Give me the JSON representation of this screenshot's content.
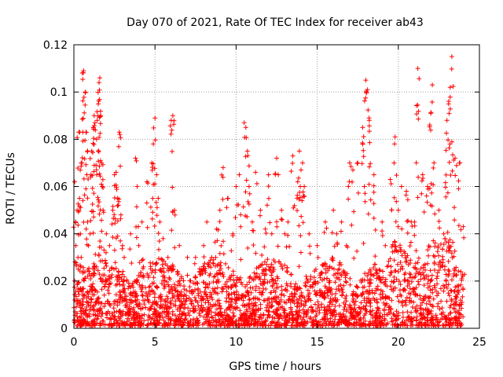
{
  "chart_data": {
    "type": "scatter",
    "title": "Day 070 of 2021, Rate Of TEC Index for receiver ab43",
    "xlabel": "GPS time / hours",
    "ylabel": "ROTI / TECUs",
    "xlim": [
      0,
      25
    ],
    "ylim": [
      0,
      0.12
    ],
    "xticks": [
      "0",
      "5",
      "10",
      "15",
      "20",
      "25"
    ],
    "yticks": [
      "0",
      "0.02",
      "0.04",
      "0.06",
      "0.08",
      "0.1",
      "0.12"
    ],
    "grid": true,
    "marker": "plus",
    "color": "#ff0000",
    "series": [
      {
        "x": [
          0.05,
          0.1,
          0.12,
          0.2,
          0.25,
          0.3,
          0.35,
          0.4,
          0.45,
          0.5,
          0.55,
          0.6,
          0.7,
          0.75,
          0.8,
          0.85,
          0.9,
          1.0,
          1.05,
          1.1,
          1.2,
          1.25,
          1.3,
          1.4,
          1.5,
          1.55,
          1.6,
          1.65,
          1.7,
          1.75,
          1.8,
          2.0,
          2.2,
          2.4,
          2.5,
          2.6,
          2.7,
          2.8,
          2.9,
          3.0,
          3.1,
          3.5,
          3.8,
          3.9,
          4.0,
          4.2,
          4.5,
          4.8,
          4.9,
          5.0,
          5.1,
          5.2,
          5.3,
          5.5,
          5.8,
          6.0,
          6.1,
          6.2,
          6.5,
          7.0,
          7.5,
          8.0,
          8.2,
          8.5,
          8.8,
          9.0,
          9.2,
          9.5,
          9.8,
          10.0,
          10.2,
          10.5,
          10.6,
          10.7,
          10.8,
          11.0,
          11.2,
          11.5,
          11.8,
          12.0,
          12.2,
          12.5,
          12.6,
          12.8,
          13.0,
          13.2,
          13.5,
          13.8,
          13.9,
          14.0,
          14.1,
          14.2,
          14.5,
          15.0,
          15.5,
          16.0,
          16.2,
          16.5,
          16.8,
          17.0,
          17.2,
          17.5,
          17.8,
          17.9,
          18.0,
          18.1,
          18.2,
          18.5,
          19.0,
          19.2,
          19.5,
          19.8,
          20.0,
          20.2,
          20.5,
          20.8,
          21.0,
          21.2,
          21.5,
          21.8,
          22.0,
          22.1,
          22.2,
          22.5,
          22.8,
          23.0,
          23.1,
          23.2,
          23.3,
          23.5,
          23.8,
          24.0
        ],
        "y": [
          0.062,
          0.045,
          0.035,
          0.05,
          0.03,
          0.083,
          0.055,
          0.04,
          0.03,
          0.07,
          0.083,
          0.109,
          0.1,
          0.083,
          0.065,
          0.045,
          0.035,
          0.04,
          0.065,
          0.075,
          0.085,
          0.09,
          0.087,
          0.08,
          0.095,
          0.104,
          0.106,
          0.09,
          0.07,
          0.06,
          0.05,
          0.04,
          0.035,
          0.05,
          0.065,
          0.066,
          0.055,
          0.083,
          0.048,
          0.035,
          0.03,
          0.04,
          0.072,
          0.06,
          0.035,
          0.045,
          0.062,
          0.07,
          0.078,
          0.089,
          0.065,
          0.055,
          0.045,
          0.038,
          0.03,
          0.088,
          0.09,
          0.05,
          0.035,
          0.03,
          0.03,
          0.035,
          0.045,
          0.03,
          0.042,
          0.05,
          0.068,
          0.055,
          0.04,
          0.06,
          0.065,
          0.087,
          0.085,
          0.075,
          0.06,
          0.045,
          0.066,
          0.05,
          0.042,
          0.065,
          0.04,
          0.072,
          0.065,
          0.05,
          0.04,
          0.045,
          0.073,
          0.062,
          0.075,
          0.067,
          0.07,
          0.06,
          0.04,
          0.035,
          0.045,
          0.05,
          0.04,
          0.045,
          0.035,
          0.07,
          0.067,
          0.07,
          0.085,
          0.06,
          0.105,
          0.101,
          0.089,
          0.065,
          0.045,
          0.035,
          0.063,
          0.081,
          0.05,
          0.06,
          0.058,
          0.045,
          0.045,
          0.11,
          0.065,
          0.06,
          0.091,
          0.103,
          0.07,
          0.05,
          0.04,
          0.088,
          0.095,
          0.102,
          0.115,
          0.072,
          0.07,
          0.043
        ],
        "dense_band": {
          "y_min": 0.001,
          "y_max": 0.03,
          "x_min": 0,
          "x_max": 24
        }
      }
    ]
  }
}
